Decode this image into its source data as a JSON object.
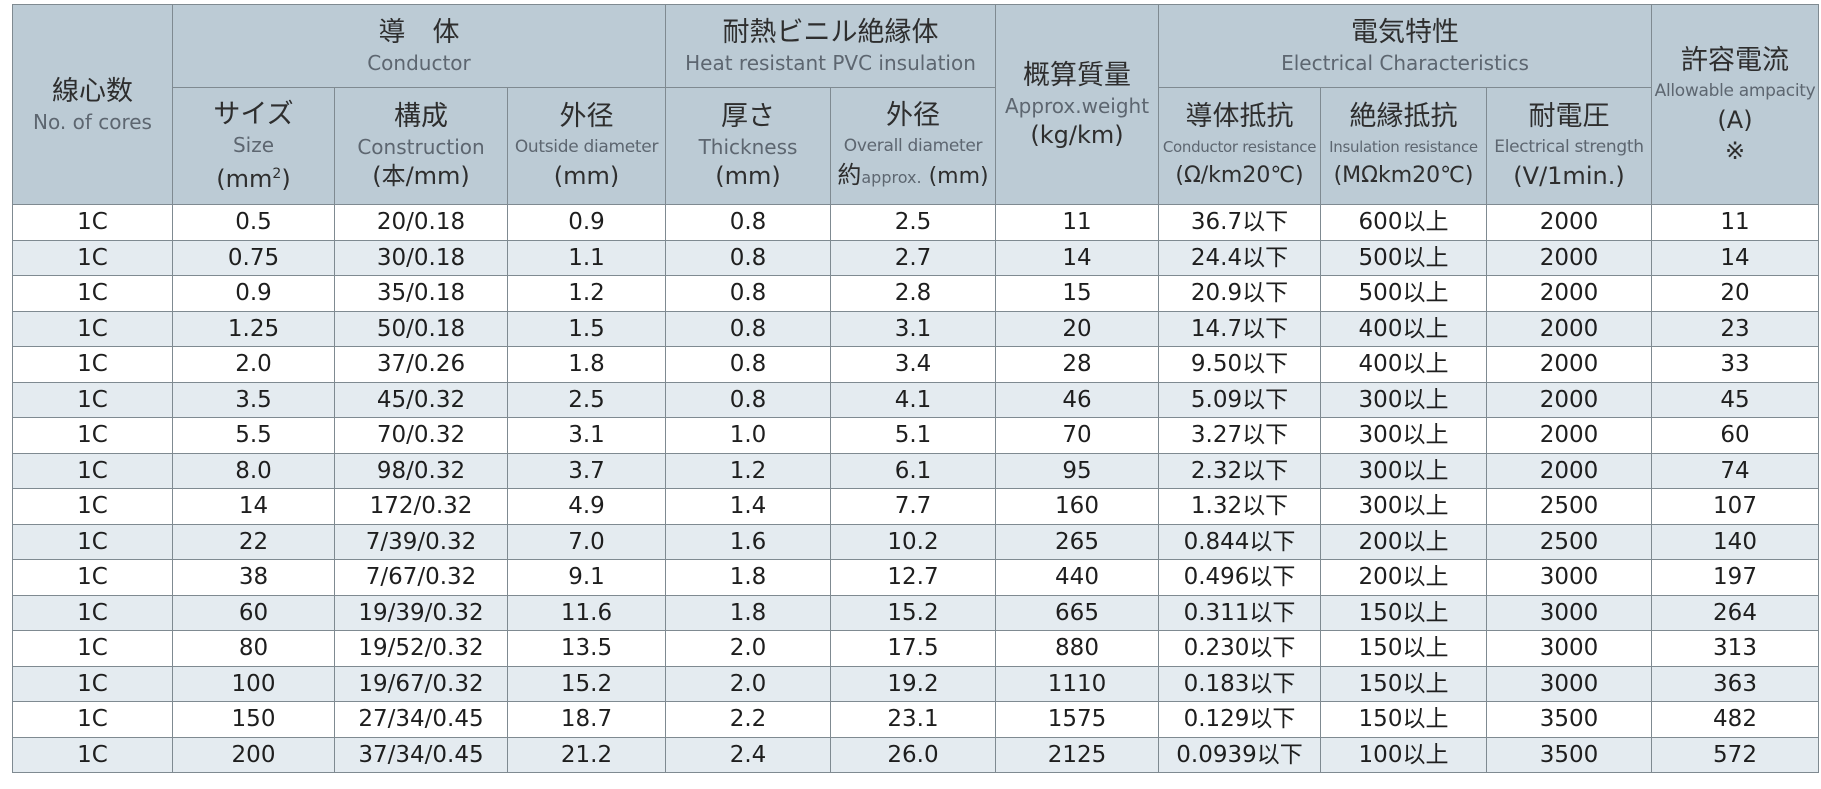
{
  "headers": {
    "cores": {
      "jp": "線心数",
      "en": "No. of cores"
    },
    "conductor": {
      "jp": "導　体",
      "en": "Conductor"
    },
    "size": {
      "jp": "サイズ",
      "en": "Size",
      "unit_base": "(mm",
      "unit_sup": "2",
      "unit_end": ")"
    },
    "construction": {
      "jp": "構成",
      "en": "Construction",
      "unit": "(本/mm)"
    },
    "cond_od": {
      "jp": "外径",
      "en": "Outside diameter",
      "unit": "(mm)"
    },
    "insulation": {
      "jp": "耐熱ビニル絶縁体",
      "en": "Heat resistant PVC insulation"
    },
    "thickness": {
      "jp": "厚さ",
      "en": "Thickness",
      "unit": "(mm)"
    },
    "overall_od": {
      "jp": "外径",
      "en": "Overall diameter",
      "unit_prefix": "約",
      "unit_mid": "approx.",
      "unit_end": " (mm)"
    },
    "weight": {
      "jp": "概算質量",
      "en": "Approx.weight",
      "unit": "(kg/km)"
    },
    "electrical": {
      "jp": "電気特性",
      "en": "Electrical Characteristics"
    },
    "cond_res": {
      "jp": "導体抵抗",
      "en": "Conductor resistance",
      "unit": "(Ω/km20℃)"
    },
    "ins_res": {
      "jp": "絶縁抵抗",
      "en": "Insulation resistance",
      "unit": "(MΩkm20℃)"
    },
    "voltage": {
      "jp": "耐電圧",
      "en": "Electrical strength",
      "unit": "(V/1min.)"
    },
    "ampacity": {
      "jp": "許容電流",
      "en": "Allowable ampacity",
      "unit": "(A)",
      "mark": "※"
    }
  },
  "rows": [
    [
      "1C",
      "0.5",
      "20/0.18",
      "0.9",
      "0.8",
      "2.5",
      "11",
      "36.7以下",
      "600以上",
      "2000",
      "11"
    ],
    [
      "1C",
      "0.75",
      "30/0.18",
      "1.1",
      "0.8",
      "2.7",
      "14",
      "24.4以下",
      "500以上",
      "2000",
      "14"
    ],
    [
      "1C",
      "0.9",
      "35/0.18",
      "1.2",
      "0.8",
      "2.8",
      "15",
      "20.9以下",
      "500以上",
      "2000",
      "20"
    ],
    [
      "1C",
      "1.25",
      "50/0.18",
      "1.5",
      "0.8",
      "3.1",
      "20",
      "14.7以下",
      "400以上",
      "2000",
      "23"
    ],
    [
      "1C",
      "2.0",
      "37/0.26",
      "1.8",
      "0.8",
      "3.4",
      "28",
      "9.50以下",
      "400以上",
      "2000",
      "33"
    ],
    [
      "1C",
      "3.5",
      "45/0.32",
      "2.5",
      "0.8",
      "4.1",
      "46",
      "5.09以下",
      "300以上",
      "2000",
      "45"
    ],
    [
      "1C",
      "5.5",
      "70/0.32",
      "3.1",
      "1.0",
      "5.1",
      "70",
      "3.27以下",
      "300以上",
      "2000",
      "60"
    ],
    [
      "1C",
      "8.0",
      "98/0.32",
      "3.7",
      "1.2",
      "6.1",
      "95",
      "2.32以下",
      "300以上",
      "2000",
      "74"
    ],
    [
      "1C",
      "14",
      "172/0.32",
      "4.9",
      "1.4",
      "7.7",
      "160",
      "1.32以下",
      "300以上",
      "2500",
      "107"
    ],
    [
      "1C",
      "22",
      "7/39/0.32",
      "7.0",
      "1.6",
      "10.2",
      "265",
      "0.844以下",
      "200以上",
      "2500",
      "140"
    ],
    [
      "1C",
      "38",
      "7/67/0.32",
      "9.1",
      "1.8",
      "12.7",
      "440",
      "0.496以下",
      "200以上",
      "3000",
      "197"
    ],
    [
      "1C",
      "60",
      "19/39/0.32",
      "11.6",
      "1.8",
      "15.2",
      "665",
      "0.311以下",
      "150以上",
      "3000",
      "264"
    ],
    [
      "1C",
      "80",
      "19/52/0.32",
      "13.5",
      "2.0",
      "17.5",
      "880",
      "0.230以下",
      "150以上",
      "3000",
      "313"
    ],
    [
      "1C",
      "100",
      "19/67/0.32",
      "15.2",
      "2.0",
      "19.2",
      "1110",
      "0.183以下",
      "150以上",
      "3000",
      "363"
    ],
    [
      "1C",
      "150",
      "27/34/0.45",
      "18.7",
      "2.2",
      "23.1",
      "1575",
      "0.129以下",
      "150以上",
      "3500",
      "482"
    ],
    [
      "1C",
      "200",
      "37/34/0.45",
      "21.2",
      "2.4",
      "26.0",
      "2125",
      "0.0939以下",
      "100以上",
      "3500",
      "572"
    ]
  ]
}
